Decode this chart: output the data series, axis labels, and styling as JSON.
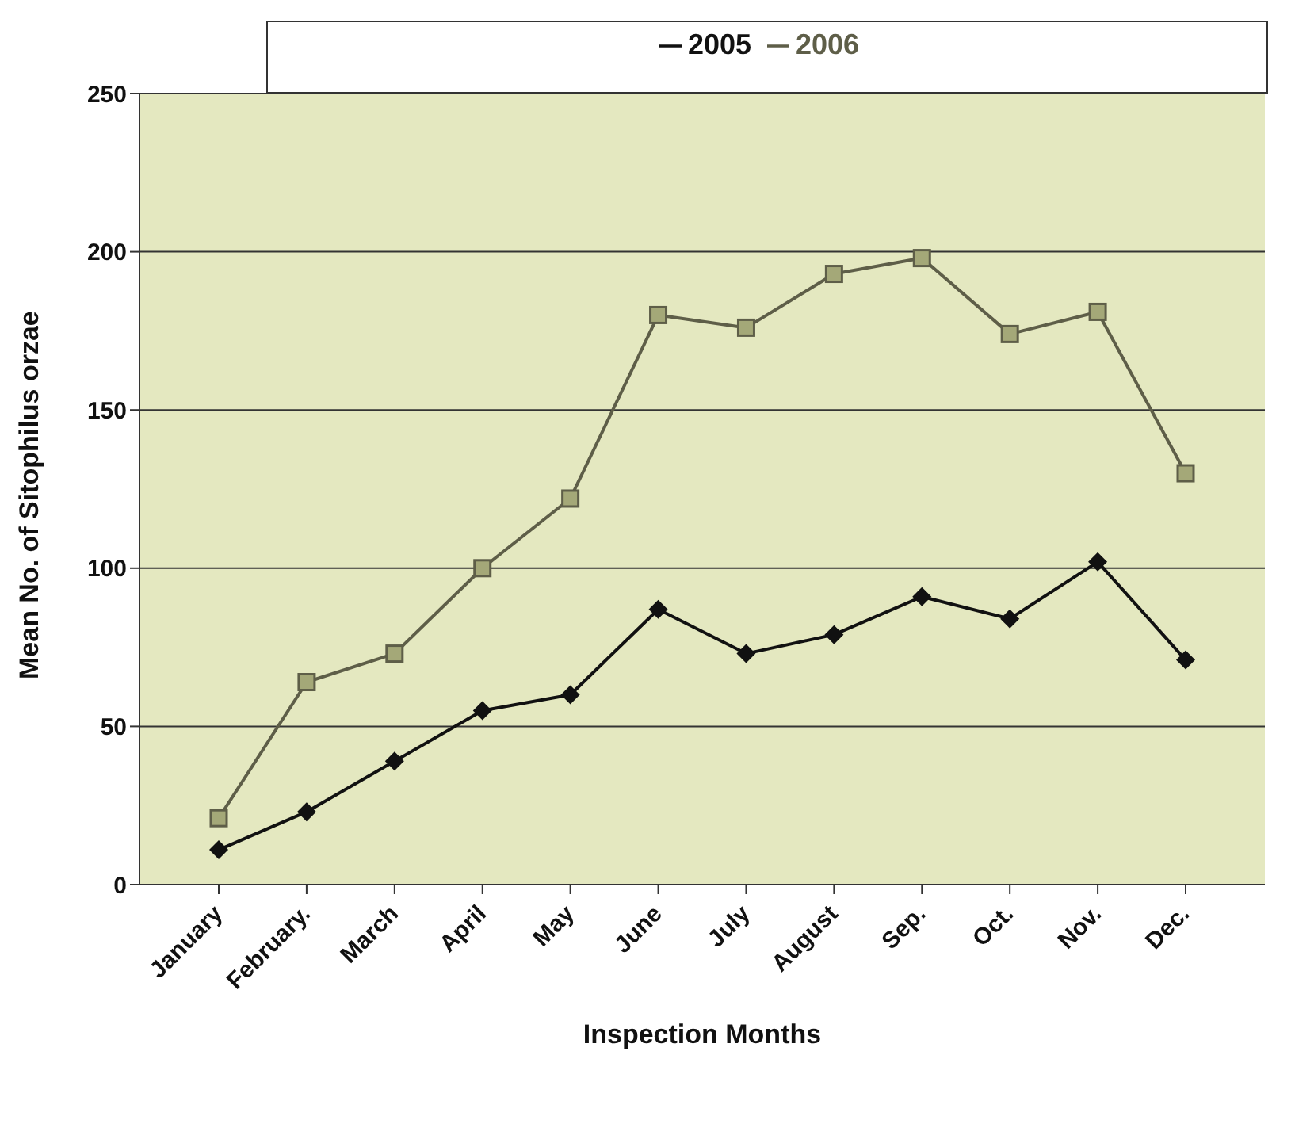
{
  "chart_data": {
    "type": "line",
    "xlabel": "Inspection Months",
    "ylabel": "Mean No. of Sitophilus orzae",
    "categories": [
      "January",
      "February.",
      "March",
      "April",
      "May",
      "June",
      "July",
      "August",
      "Sep.",
      "Oct.",
      "Nov.",
      "Dec."
    ],
    "series": [
      {
        "name": "2005",
        "color": "#111111",
        "marker": "diamond",
        "values": [
          11,
          23,
          39,
          55,
          60,
          87,
          73,
          79,
          91,
          84,
          102,
          71
        ]
      },
      {
        "name": "2006",
        "color": "#5e5e48",
        "marker": "square",
        "values": [
          21,
          64,
          73,
          100,
          122,
          180,
          176,
          193,
          198,
          174,
          181,
          130
        ]
      }
    ],
    "ylim": [
      0,
      250
    ],
    "yticks": [
      0,
      50,
      100,
      150,
      200,
      250
    ],
    "grid": "y",
    "legend": "top"
  }
}
